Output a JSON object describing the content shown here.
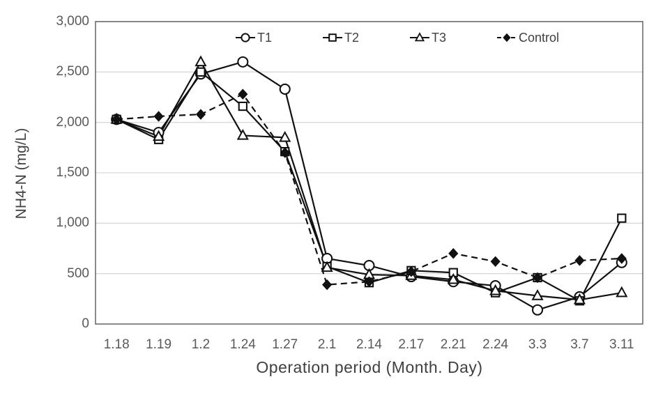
{
  "chart_data": {
    "type": "line",
    "title": "",
    "xlabel": "Operation period (Month. Day)",
    "ylabel": "NH4-N (mg/L)",
    "ylim": [
      0,
      3000
    ],
    "ytick_step": 500,
    "yticks": [
      {
        "value": 0,
        "label": "0"
      },
      {
        "value": 500,
        "label": "500"
      },
      {
        "value": 1000,
        "label": "1,000"
      },
      {
        "value": 1500,
        "label": "1,500"
      },
      {
        "value": 2000,
        "label": "2,000"
      },
      {
        "value": 2500,
        "label": "2,500"
      },
      {
        "value": 3000,
        "label": "3,000"
      }
    ],
    "categories": [
      "1.18",
      "1.19",
      "1.2",
      "1.24",
      "1.27",
      "2.1",
      "2.14",
      "2.17",
      "2.21",
      "2.24",
      "3.3",
      "3.7",
      "3.11"
    ],
    "series": [
      {
        "name": "T1",
        "marker": "circle",
        "line": "solid",
        "values": [
          2030,
          1900,
          2480,
          2600,
          2330,
          650,
          580,
          470,
          420,
          380,
          140,
          270,
          610
        ]
      },
      {
        "name": "T2",
        "marker": "square",
        "line": "solid",
        "values": [
          2030,
          1830,
          2500,
          2160,
          1710,
          570,
          410,
          530,
          510,
          310,
          460,
          230,
          1050
        ]
      },
      {
        "name": "T3",
        "marker": "triangle",
        "line": "solid",
        "values": [
          2030,
          1860,
          2600,
          1870,
          1850,
          560,
          490,
          480,
          440,
          330,
          280,
          240,
          310
        ]
      },
      {
        "name": "Control",
        "marker": "diamond",
        "line": "dashed",
        "values": [
          2030,
          2060,
          2080,
          2280,
          1700,
          390,
          420,
          520,
          700,
          620,
          460,
          630,
          650
        ]
      }
    ],
    "legend_position": "top-inside",
    "grid": "horizontal",
    "colors": {
      "series_line": "#111111",
      "marker_fill": "#ffffff",
      "diamond_fill": "#111111",
      "grid_line": "#d9d9d9",
      "frame": "#595959",
      "tick_text": "#595959",
      "title_text": "#404040"
    }
  }
}
